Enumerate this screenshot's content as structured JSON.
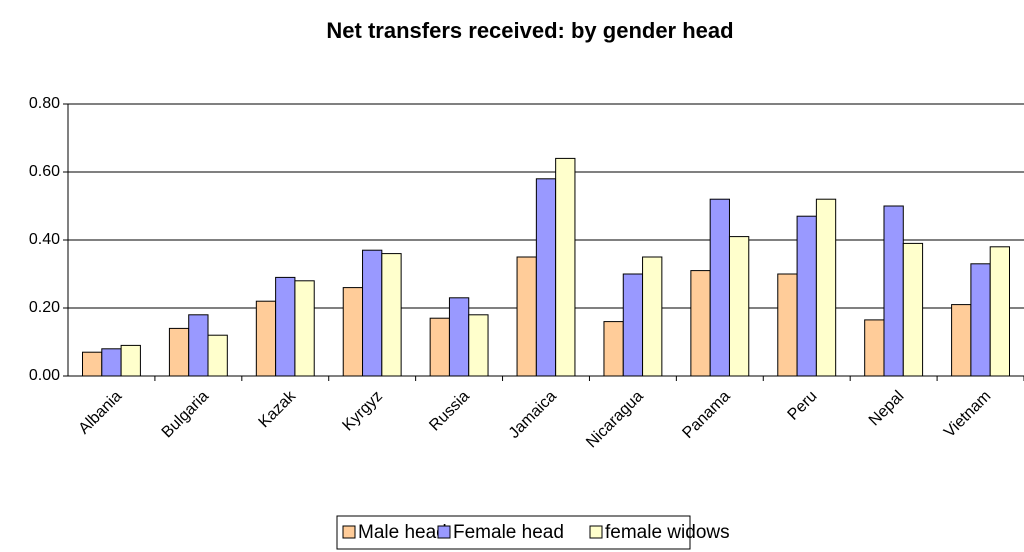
{
  "chart_data": {
    "type": "bar",
    "title": "Net transfers received: by gender head",
    "categories": [
      "Albania",
      "Bulgaria",
      "Kazak",
      "Kyrgyz",
      "Russia",
      "Jamaica",
      "Nicaragua",
      "Panama",
      "Peru",
      "Nepal",
      "Vietnam"
    ],
    "series": [
      {
        "name": "Male head",
        "color": "#ffcc99",
        "values": [
          0.07,
          0.14,
          0.22,
          0.26,
          0.17,
          0.35,
          0.16,
          0.31,
          0.3,
          0.165,
          0.21
        ]
      },
      {
        "name": "Female head",
        "color": "#9999ff",
        "values": [
          0.08,
          0.18,
          0.29,
          0.37,
          0.23,
          0.58,
          0.3,
          0.52,
          0.47,
          0.5,
          0.33
        ]
      },
      {
        "name": "female widows",
        "color": "#ffffcc",
        "values": [
          0.09,
          0.12,
          0.28,
          0.36,
          0.18,
          0.64,
          0.35,
          0.41,
          0.52,
          0.39,
          0.38
        ]
      }
    ],
    "ylim": [
      0,
      0.8
    ],
    "yticks": [
      {
        "value": 0,
        "label": "0.00"
      },
      {
        "value": 0.2,
        "label": "0.20"
      },
      {
        "value": 0.4,
        "label": "0.40"
      },
      {
        "value": 0.6,
        "label": "0.60"
      },
      {
        "value": 0.8,
        "label": "0.80"
      }
    ],
    "grid": true,
    "legend": "bottom"
  }
}
